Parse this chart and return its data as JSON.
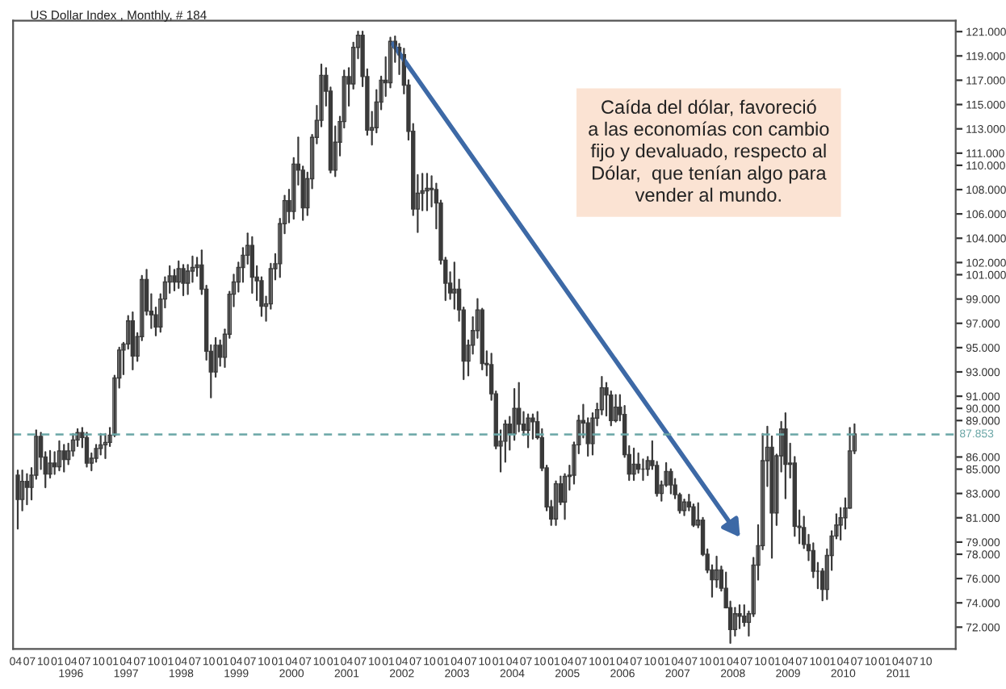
{
  "chart_data": {
    "type": "candlestick",
    "title": "US Dollar Index , Monthly, # 184",
    "x": [
      "1995-04-15",
      "1995-05-15",
      "1995-06-15",
      "1995-07-15",
      "1995-08-15",
      "1995-09-15",
      "1995-10-15",
      "1995-11-15",
      "1995-12-15",
      "1996-01-15",
      "1996-02-15",
      "1996-03-15",
      "1996-04-15",
      "1996-05-15",
      "1996-06-15",
      "1996-07-15",
      "1996-08-15",
      "1996-09-15",
      "1996-10-15",
      "1996-11-15",
      "1996-12-15",
      "1997-01-15",
      "1997-02-15",
      "1997-03-15",
      "1997-04-15",
      "1997-05-15",
      "1997-06-15",
      "1997-07-15",
      "1997-08-15",
      "1997-09-15",
      "1997-10-15",
      "1997-11-15",
      "1997-12-15",
      "1998-01-15",
      "1998-02-15",
      "1998-03-15",
      "1998-04-15",
      "1998-05-15",
      "1998-06-15",
      "1998-07-15",
      "1998-08-15",
      "1998-09-15",
      "1998-10-15",
      "1998-11-15",
      "1998-12-15",
      "1999-01-15",
      "1999-02-15",
      "1999-03-15",
      "1999-04-15",
      "1999-05-15",
      "1999-06-15",
      "1999-07-15",
      "1999-08-15",
      "1999-09-15",
      "1999-10-15",
      "1999-11-15",
      "1999-12-15",
      "2000-01-15",
      "2000-02-15",
      "2000-03-15",
      "2000-04-15",
      "2000-05-15",
      "2000-06-15",
      "2000-07-15",
      "2000-08-15",
      "2000-09-15",
      "2000-10-15",
      "2000-11-15",
      "2000-12-15",
      "2001-01-15",
      "2001-02-15",
      "2001-03-15",
      "2001-04-15",
      "2001-05-15",
      "2001-06-15",
      "2001-07-15",
      "2001-08-15",
      "2001-09-15",
      "2001-10-15",
      "2001-11-15",
      "2001-12-15",
      "2002-01-15",
      "2002-02-15",
      "2002-03-15",
      "2002-04-15",
      "2002-05-15",
      "2002-06-15",
      "2002-07-15",
      "2002-08-15",
      "2002-09-15",
      "2002-10-15",
      "2002-11-15",
      "2002-12-15",
      "2003-01-15",
      "2003-02-15",
      "2003-03-15",
      "2003-04-15",
      "2003-05-15",
      "2003-06-15",
      "2003-07-15",
      "2003-08-15",
      "2003-09-15",
      "2003-10-15",
      "2003-11-15",
      "2003-12-15",
      "2004-01-15",
      "2004-02-15",
      "2004-03-15",
      "2004-04-15",
      "2004-05-15",
      "2004-06-15",
      "2004-07-15",
      "2004-08-15",
      "2004-09-15",
      "2004-10-15",
      "2004-11-15",
      "2004-12-15",
      "2005-01-15",
      "2005-02-15",
      "2005-03-15",
      "2005-04-15",
      "2005-05-15",
      "2005-06-15",
      "2005-07-15",
      "2005-08-15",
      "2005-09-15",
      "2005-10-15",
      "2005-11-15",
      "2005-12-15",
      "2006-01-15",
      "2006-02-15",
      "2006-03-15",
      "2006-04-15",
      "2006-05-15",
      "2006-06-15",
      "2006-07-15",
      "2006-08-15",
      "2006-09-15",
      "2006-10-15",
      "2006-11-15",
      "2006-12-15",
      "2007-01-15",
      "2007-02-15",
      "2007-03-15",
      "2007-04-15",
      "2007-05-15",
      "2007-06-15",
      "2007-07-15",
      "2007-08-15",
      "2007-09-15",
      "2007-10-15",
      "2007-11-15",
      "2007-12-15",
      "2008-01-15",
      "2008-02-15",
      "2008-03-15",
      "2008-04-15",
      "2008-05-15",
      "2008-06-15",
      "2008-07-15",
      "2008-08-15",
      "2008-09-15",
      "2008-10-15",
      "2008-11-15",
      "2008-12-15",
      "2009-01-15",
      "2009-02-15",
      "2009-03-15",
      "2009-04-15",
      "2009-05-15",
      "2009-06-15",
      "2009-07-15",
      "2009-08-15",
      "2009-09-15",
      "2009-10-15",
      "2009-11-15",
      "2009-12-15",
      "2010-01-15",
      "2010-02-15",
      "2010-03-15",
      "2010-04-15",
      "2010-05-15",
      "2010-06-15"
    ],
    "ohlc": [
      [
        84.5,
        84.9,
        80.1,
        82.5
      ],
      [
        82.5,
        84.9,
        81.6,
        84.0
      ],
      [
        84.0,
        84.6,
        82.1,
        83.5
      ],
      [
        83.5,
        85.1,
        82.5,
        84.5
      ],
      [
        84.5,
        88.2,
        84.2,
        87.7
      ],
      [
        87.7,
        88.0,
        85.0,
        86.0
      ],
      [
        86.0,
        86.4,
        83.5,
        84.6
      ],
      [
        84.6,
        86.5,
        84.3,
        85.5
      ],
      [
        85.5,
        86.4,
        84.6,
        85.2
      ],
      [
        85.2,
        87.3,
        84.9,
        86.5
      ],
      [
        86.5,
        87.0,
        84.8,
        85.8
      ],
      [
        85.8,
        87.1,
        85.4,
        86.5
      ],
      [
        86.5,
        87.9,
        86.1,
        87.4
      ],
      [
        87.4,
        88.3,
        86.9,
        88.0
      ],
      [
        88.0,
        88.4,
        86.8,
        87.6
      ],
      [
        87.6,
        88.0,
        85.2,
        85.5
      ],
      [
        85.5,
        86.3,
        84.9,
        85.9
      ],
      [
        85.9,
        87.0,
        85.6,
        86.7
      ],
      [
        86.7,
        87.9,
        86.2,
        87.0
      ],
      [
        87.0,
        87.9,
        85.9,
        87.2
      ],
      [
        87.2,
        88.4,
        86.9,
        87.8
      ],
      [
        87.8,
        92.7,
        87.7,
        92.5
      ],
      [
        92.5,
        95.0,
        91.7,
        94.8
      ],
      [
        94.8,
        95.4,
        92.8,
        95.3
      ],
      [
        95.3,
        97.6,
        94.9,
        97.2
      ],
      [
        97.2,
        97.9,
        93.2,
        94.3
      ],
      [
        94.3,
        96.2,
        93.9,
        95.9
      ],
      [
        95.9,
        100.9,
        95.6,
        100.6
      ],
      [
        100.6,
        101.4,
        97.7,
        98.0
      ],
      [
        98.0,
        99.4,
        96.6,
        97.7
      ],
      [
        97.7,
        98.3,
        96.0,
        96.7
      ],
      [
        96.7,
        99.4,
        96.3,
        99.0
      ],
      [
        99.0,
        100.8,
        98.3,
        100.4
      ],
      [
        100.4,
        101.7,
        99.5,
        100.9
      ],
      [
        100.9,
        101.4,
        99.7,
        100.4
      ],
      [
        100.4,
        102.1,
        99.9,
        101.5
      ],
      [
        101.5,
        101.8,
        99.3,
        100.3
      ],
      [
        100.3,
        101.8,
        99.4,
        101.3
      ],
      [
        101.3,
        102.5,
        100.4,
        101.6
      ],
      [
        101.6,
        102.4,
        100.9,
        101.8
      ],
      [
        101.8,
        103.0,
        99.4,
        99.8
      ],
      [
        99.8,
        100.1,
        94.0,
        94.7
      ],
      [
        94.7,
        95.2,
        90.9,
        93.0
      ],
      [
        93.0,
        95.8,
        92.6,
        95.2
      ],
      [
        95.2,
        95.6,
        93.5,
        94.2
      ],
      [
        94.2,
        96.5,
        93.4,
        96.1
      ],
      [
        96.1,
        99.6,
        95.8,
        99.4
      ],
      [
        99.4,
        101.0,
        98.4,
        100.4
      ],
      [
        100.4,
        102.0,
        99.6,
        101.6
      ],
      [
        101.6,
        103.2,
        100.4,
        102.6
      ],
      [
        102.6,
        104.4,
        101.9,
        103.4
      ],
      [
        103.4,
        104.1,
        99.5,
        100.8
      ],
      [
        100.8,
        101.7,
        98.9,
        100.5
      ],
      [
        100.5,
        100.8,
        97.6,
        98.4
      ],
      [
        98.4,
        99.2,
        97.2,
        98.6
      ],
      [
        98.6,
        101.9,
        98.2,
        101.5
      ],
      [
        101.5,
        102.7,
        100.6,
        101.9
      ],
      [
        101.9,
        105.6,
        100.8,
        105.2
      ],
      [
        105.2,
        107.5,
        104.4,
        107.1
      ],
      [
        107.1,
        108.0,
        105.3,
        106.2
      ],
      [
        106.2,
        110.6,
        105.6,
        110.1
      ],
      [
        110.1,
        112.3,
        108.4,
        109.6
      ],
      [
        109.6,
        109.9,
        105.5,
        106.5
      ],
      [
        106.5,
        109.4,
        105.9,
        108.9
      ],
      [
        108.9,
        112.5,
        108.1,
        112.3
      ],
      [
        112.3,
        114.9,
        111.8,
        113.7
      ],
      [
        113.7,
        118.3,
        113.2,
        117.4
      ],
      [
        117.4,
        118.0,
        114.9,
        116.1
      ],
      [
        116.1,
        116.4,
        109.4,
        109.6
      ],
      [
        109.6,
        113.2,
        109.1,
        111.9
      ],
      [
        111.9,
        114.0,
        110.8,
        113.6
      ],
      [
        113.6,
        117.8,
        113.1,
        117.3
      ],
      [
        117.3,
        118.0,
        114.9,
        116.7
      ],
      [
        116.7,
        120.1,
        116.3,
        119.7
      ],
      [
        119.7,
        121.0,
        118.8,
        120.7
      ],
      [
        120.7,
        121.0,
        116.5,
        117.3
      ],
      [
        117.3,
        117.9,
        112.5,
        112.9
      ],
      [
        112.9,
        114.4,
        111.7,
        113.1
      ],
      [
        113.1,
        116.2,
        112.7,
        115.2
      ],
      [
        115.2,
        117.3,
        114.6,
        117.0
      ],
      [
        117.0,
        118.9,
        115.7,
        116.8
      ],
      [
        116.8,
        120.5,
        116.4,
        120.2
      ],
      [
        120.2,
        120.6,
        118.5,
        119.7
      ],
      [
        119.7,
        120.0,
        117.5,
        119.1
      ],
      [
        119.1,
        119.6,
        115.9,
        116.6
      ],
      [
        116.6,
        117.0,
        112.1,
        112.8
      ],
      [
        112.8,
        113.4,
        105.9,
        106.4
      ],
      [
        106.4,
        109.2,
        104.5,
        107.7
      ],
      [
        107.7,
        109.3,
        106.3,
        107.9
      ],
      [
        107.9,
        109.3,
        106.3,
        108.1
      ],
      [
        108.1,
        109.1,
        106.6,
        108.0
      ],
      [
        108.0,
        108.5,
        104.8,
        106.9
      ],
      [
        106.9,
        107.1,
        101.9,
        102.2
      ],
      [
        102.2,
        102.4,
        98.9,
        100.3
      ],
      [
        100.3,
        101.2,
        99.0,
        99.5
      ],
      [
        99.5,
        102.0,
        98.2,
        99.8
      ],
      [
        99.8,
        100.6,
        97.2,
        98.1
      ],
      [
        98.1,
        98.3,
        92.4,
        93.9
      ],
      [
        93.9,
        95.6,
        92.7,
        95.2
      ],
      [
        95.2,
        97.5,
        94.5,
        96.4
      ],
      [
        96.4,
        99.0,
        95.8,
        98.1
      ],
      [
        98.1,
        98.2,
        93.2,
        93.7
      ],
      [
        93.7,
        94.7,
        92.7,
        93.6
      ],
      [
        93.6,
        94.5,
        90.7,
        91.2
      ],
      [
        91.2,
        91.4,
        86.7,
        86.9
      ],
      [
        86.9,
        88.2,
        84.8,
        87.3
      ],
      [
        87.3,
        89.0,
        85.6,
        88.7
      ],
      [
        88.7,
        89.3,
        86.6,
        87.9
      ],
      [
        87.9,
        91.6,
        87.4,
        90.0
      ],
      [
        90.0,
        92.1,
        88.1,
        88.7
      ],
      [
        88.7,
        89.7,
        87.8,
        88.2
      ],
      [
        88.2,
        89.5,
        86.8,
        89.2
      ],
      [
        89.2,
        89.5,
        87.5,
        88.9
      ],
      [
        88.9,
        89.7,
        87.5,
        87.6
      ],
      [
        87.6,
        88.3,
        84.9,
        85.1
      ],
      [
        85.1,
        85.3,
        81.6,
        81.9
      ],
      [
        81.9,
        82.4,
        80.4,
        80.9
      ],
      [
        80.9,
        84.0,
        80.4,
        83.8
      ],
      [
        83.8,
        84.4,
        82.1,
        82.3
      ],
      [
        82.3,
        84.6,
        80.9,
        84.4
      ],
      [
        84.4,
        85.3,
        83.3,
        84.5
      ],
      [
        84.5,
        87.2,
        83.8,
        87.0
      ],
      [
        87.0,
        89.4,
        86.3,
        89.0
      ],
      [
        89.0,
        90.3,
        87.6,
        88.8
      ],
      [
        88.8,
        89.2,
        86.1,
        87.1
      ],
      [
        87.1,
        89.6,
        86.2,
        89.2
      ],
      [
        89.2,
        90.4,
        88.6,
        89.9
      ],
      [
        89.9,
        92.6,
        89.5,
        91.7
      ],
      [
        91.7,
        92.1,
        89.4,
        91.1
      ],
      [
        91.1,
        91.4,
        88.6,
        89.0
      ],
      [
        89.0,
        91.1,
        88.9,
        90.1
      ],
      [
        90.1,
        91.1,
        89.0,
        89.5
      ],
      [
        89.5,
        90.2,
        86.0,
        86.2
      ],
      [
        86.2,
        86.9,
        84.1,
        84.6
      ],
      [
        84.6,
        86.7,
        84.1,
        85.4
      ],
      [
        85.4,
        86.3,
        84.7,
        85.0
      ],
      [
        85.0,
        85.8,
        84.1,
        85.0
      ],
      [
        85.0,
        86.0,
        84.5,
        85.7
      ],
      [
        85.7,
        87.3,
        85.0,
        85.3
      ],
      [
        85.3,
        85.6,
        82.8,
        83.0
      ],
      [
        83.0,
        84.0,
        82.4,
        83.7
      ],
      [
        83.7,
        85.5,
        83.6,
        84.8
      ],
      [
        84.8,
        85.0,
        83.0,
        83.7
      ],
      [
        83.7,
        84.2,
        82.6,
        82.9
      ],
      [
        82.9,
        83.0,
        81.4,
        81.6
      ],
      [
        81.6,
        82.5,
        81.2,
        82.3
      ],
      [
        82.3,
        82.9,
        81.6,
        81.9
      ],
      [
        81.9,
        82.1,
        80.3,
        80.4
      ],
      [
        80.4,
        82.2,
        80.2,
        80.8
      ],
      [
        80.8,
        81.0,
        77.9,
        78.0
      ],
      [
        78.0,
        78.4,
        76.5,
        76.7
      ],
      [
        76.7,
        77.1,
        74.5,
        75.9
      ],
      [
        75.9,
        77.8,
        75.3,
        76.7
      ],
      [
        76.7,
        77.0,
        75.0,
        75.2
      ],
      [
        75.2,
        76.5,
        73.6,
        73.6
      ],
      [
        73.6,
        74.1,
        70.7,
        71.8
      ],
      [
        71.8,
        73.6,
        71.3,
        73.1
      ],
      [
        73.1,
        73.8,
        71.9,
        72.9
      ],
      [
        72.9,
        73.8,
        72.1,
        72.4
      ],
      [
        72.4,
        73.3,
        71.3,
        73.1
      ],
      [
        73.1,
        77.7,
        72.9,
        77.1
      ],
      [
        77.1,
        80.4,
        75.9,
        78.7
      ],
      [
        78.7,
        87.9,
        78.4,
        85.7
      ],
      [
        85.7,
        88.5,
        83.6,
        86.8
      ],
      [
        86.8,
        87.7,
        77.7,
        81.4
      ],
      [
        81.4,
        86.2,
        80.4,
        86.1
      ],
      [
        86.1,
        88.9,
        84.8,
        88.3
      ],
      [
        88.3,
        89.6,
        82.6,
        85.4
      ],
      [
        85.4,
        87.1,
        84.3,
        85.5
      ],
      [
        85.5,
        86.0,
        79.5,
        80.3
      ],
      [
        80.3,
        81.6,
        78.9,
        80.2
      ],
      [
        80.2,
        81.1,
        78.5,
        78.8
      ],
      [
        78.8,
        79.6,
        77.5,
        78.3
      ],
      [
        78.3,
        78.9,
        76.1,
        76.6
      ],
      [
        76.6,
        77.3,
        75.2,
        76.6
      ],
      [
        76.6,
        76.8,
        74.2,
        75.1
      ],
      [
        75.1,
        78.4,
        74.3,
        77.9
      ],
      [
        77.9,
        79.9,
        76.7,
        79.5
      ],
      [
        79.5,
        81.3,
        79.3,
        80.4
      ],
      [
        80.4,
        81.8,
        79.2,
        81.0
      ],
      [
        81.0,
        82.6,
        80.1,
        81.8
      ],
      [
        81.8,
        88.4,
        81.8,
        86.5
      ],
      [
        86.5,
        88.7,
        86.3,
        87.9
      ]
    ],
    "xlim": [
      "1995-03-15",
      "2012-04-15"
    ],
    "ylim": [
      70.2,
      121.9
    ],
    "xticks": [
      {
        "value": "1995-04",
        "label": "04"
      },
      {
        "value": "1995-07",
        "label": "07"
      },
      {
        "value": "1995-10",
        "label": "10"
      },
      {
        "value": "1996-01",
        "label": "01"
      },
      {
        "value": "1996-04",
        "label": "04\n1996"
      },
      {
        "value": "1996-07",
        "label": "07"
      },
      {
        "value": "1996-10",
        "label": "10"
      },
      {
        "value": "1997-01",
        "label": "01"
      },
      {
        "value": "1997-04",
        "label": "04\n1997"
      },
      {
        "value": "1997-07",
        "label": "07"
      },
      {
        "value": "1997-10",
        "label": "10"
      },
      {
        "value": "1998-01",
        "label": "01"
      },
      {
        "value": "1998-04",
        "label": "04\n1998"
      },
      {
        "value": "1998-07",
        "label": "07"
      },
      {
        "value": "1998-10",
        "label": "10"
      },
      {
        "value": "1999-01",
        "label": "01"
      },
      {
        "value": "1999-04",
        "label": "04\n1999"
      },
      {
        "value": "1999-07",
        "label": "07"
      },
      {
        "value": "1999-10",
        "label": "10"
      },
      {
        "value": "2000-01",
        "label": "01"
      },
      {
        "value": "2000-04",
        "label": "04\n2000"
      },
      {
        "value": "2000-07",
        "label": "07"
      },
      {
        "value": "2000-10",
        "label": "10"
      },
      {
        "value": "2001-01",
        "label": "01"
      },
      {
        "value": "2001-04",
        "label": "04\n2001"
      },
      {
        "value": "2001-07",
        "label": "07"
      },
      {
        "value": "2001-10",
        "label": "10"
      },
      {
        "value": "2002-01",
        "label": "01"
      },
      {
        "value": "2002-04",
        "label": "04\n2002"
      },
      {
        "value": "2002-07",
        "label": "07"
      },
      {
        "value": "2002-10",
        "label": "10"
      },
      {
        "value": "2003-01",
        "label": "01"
      },
      {
        "value": "2003-04",
        "label": "04\n2003"
      },
      {
        "value": "2003-07",
        "label": "07"
      },
      {
        "value": "2003-10",
        "label": "10"
      },
      {
        "value": "2004-01",
        "label": "01"
      },
      {
        "value": "2004-04",
        "label": "04\n2004"
      },
      {
        "value": "2004-07",
        "label": "07"
      },
      {
        "value": "2004-10",
        "label": "10"
      },
      {
        "value": "2005-01",
        "label": "01"
      },
      {
        "value": "2005-04",
        "label": "04\n2005"
      },
      {
        "value": "2005-07",
        "label": "07"
      },
      {
        "value": "2005-10",
        "label": "10"
      },
      {
        "value": "2006-01",
        "label": "01"
      },
      {
        "value": "2006-04",
        "label": "04\n2006"
      },
      {
        "value": "2006-07",
        "label": "07"
      },
      {
        "value": "2006-10",
        "label": "10"
      },
      {
        "value": "2007-01",
        "label": "01"
      },
      {
        "value": "2007-04",
        "label": "04\n2007"
      },
      {
        "value": "2007-07",
        "label": "07"
      },
      {
        "value": "2007-10",
        "label": "10"
      },
      {
        "value": "2008-01",
        "label": "01"
      },
      {
        "value": "2008-04",
        "label": "04\n2008"
      },
      {
        "value": "2008-07",
        "label": "07"
      },
      {
        "value": "2008-10",
        "label": "10"
      },
      {
        "value": "2009-01",
        "label": "01"
      },
      {
        "value": "2009-04",
        "label": "04\n2009"
      },
      {
        "value": "2009-07",
        "label": "07"
      },
      {
        "value": "2009-10",
        "label": "10"
      },
      {
        "value": "2010-01",
        "label": "01"
      },
      {
        "value": "2010-04",
        "label": "04\n2010"
      },
      {
        "value": "2010-07",
        "label": "07"
      },
      {
        "value": "2010-10",
        "label": "10"
      },
      {
        "value": "2011-01",
        "label": "01"
      },
      {
        "value": "2011-04",
        "label": "04\n2011"
      },
      {
        "value": "2011-07",
        "label": "07"
      },
      {
        "value": "2011-10",
        "label": "10"
      }
    ],
    "yticks": [
      {
        "value": 121,
        "label": "121.000"
      },
      {
        "value": 119,
        "label": "119.000"
      },
      {
        "value": 117,
        "label": "117.000"
      },
      {
        "value": 115,
        "label": "115.000"
      },
      {
        "value": 113,
        "label": "113.000"
      },
      {
        "value": 111,
        "label": "111.000"
      },
      {
        "value": 110,
        "label": "110.000"
      },
      {
        "value": 108,
        "label": "108.000"
      },
      {
        "value": 106,
        "label": "106.000"
      },
      {
        "value": 104,
        "label": "104.000"
      },
      {
        "value": 102,
        "label": "102.000"
      },
      {
        "value": 101,
        "label": "101.000"
      },
      {
        "value": 99,
        "label": "99.000"
      },
      {
        "value": 97,
        "label": "97.000"
      },
      {
        "value": 95,
        "label": "95.000"
      },
      {
        "value": 93,
        "label": "93.000"
      },
      {
        "value": 91,
        "label": "91.000"
      },
      {
        "value": 90,
        "label": "90.000"
      },
      {
        "value": 89,
        "label": "89.000"
      },
      {
        "value": 86,
        "label": "86.000"
      },
      {
        "value": 85,
        "label": "85.000"
      },
      {
        "value": 83,
        "label": "83.000"
      },
      {
        "value": 81,
        "label": "81.000"
      },
      {
        "value": 79,
        "label": "79.000"
      },
      {
        "value": 78,
        "label": "78.000"
      },
      {
        "value": 76,
        "label": "76.000"
      },
      {
        "value": 74,
        "label": "74.000"
      },
      {
        "value": 72,
        "label": "72.000"
      }
    ],
    "ref_lines": [
      {
        "axis": "y",
        "value": 87.853,
        "label": "87.853",
        "color": "#6aa6a6",
        "line_style": "dashed"
      }
    ],
    "annotations": [
      "Caída del dólar, favoreció\na las economías con cambio\nfijo y devaluado, respecto al\nDólar,  que tenían algo para\nvender al mundo."
    ]
  }
}
